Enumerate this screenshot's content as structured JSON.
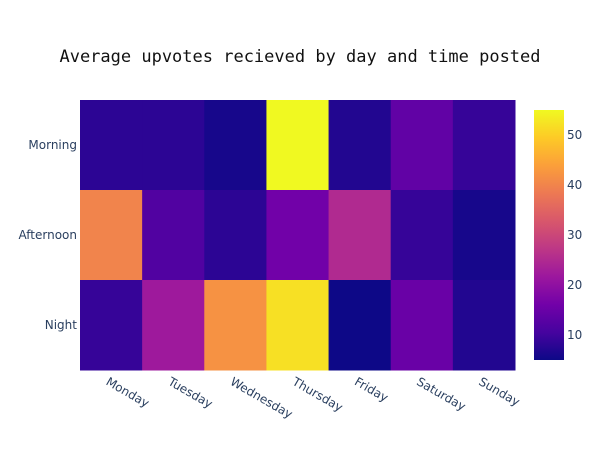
{
  "chart_data": {
    "type": "heatmap",
    "title": "Average upvotes recieved by day and time posted",
    "x": [
      "Monday",
      "Tuesday",
      "Wednesday",
      "Thursday",
      "Friday",
      "Saturday",
      "Sunday"
    ],
    "y": [
      "Morning",
      "Afternoon",
      "Night"
    ],
    "z": [
      [
        8,
        8,
        6,
        55,
        7,
        14,
        9
      ],
      [
        40,
        12,
        8,
        16,
        25,
        9,
        6
      ],
      [
        9,
        22,
        42,
        52,
        5,
        15,
        7
      ]
    ],
    "colorscale": "plasma",
    "zrange": [
      5,
      55
    ],
    "colorbar_ticks": [
      10,
      20,
      30,
      40,
      50
    ]
  }
}
